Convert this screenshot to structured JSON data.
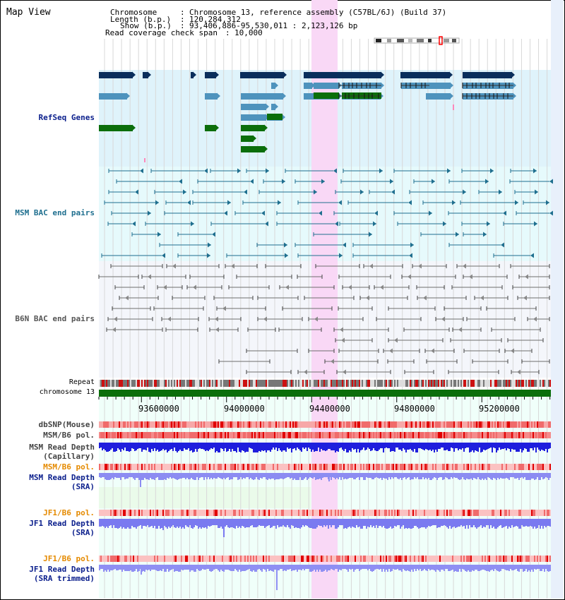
{
  "page_title": "Map View",
  "info": {
    "chromosome_key": "Chromosome",
    "chromosome_value": "Chromosome 13, reference assembly (C57BL/6J) (Build 37)",
    "length_key": "Length (b.p.)",
    "length_value": "120,284,312",
    "show_key": "Show (b.p.)",
    "show_value": "93,406,886-95,530,011 : 2,123,126 bp",
    "span_key": "Read coverage check span",
    "span_value": "10,000"
  },
  "tracks": {
    "refseq": "RefSeq Genes",
    "msm_bac": "MSM BAC end pairs",
    "b6n_bac": "B6N BAC end pairs",
    "repeat": "Repeat",
    "chromosome": "chromosome 13",
    "dbsnp": "dbSNP(Mouse)",
    "msm_pol_1": "MSM/B6 pol.",
    "msm_depth_cap_1": "MSM Read Depth",
    "msm_depth_cap_2": "(Capillary)",
    "msm_pol_2": "MSM/B6 pol.",
    "msm_depth_sra_1": "MSM Read Depth",
    "msm_depth_sra_2": "(SRA)",
    "jf1_pol_1": "JF1/B6 pol.",
    "jf1_depth_sra_1": "JF1 Read Depth",
    "jf1_depth_sra_2": "(SRA)",
    "jf1_pol_2": "JF1/B6 pol.",
    "jf1_depth_trim_1": "JF1 Read Depth",
    "jf1_depth_trim_2": "(SRA trimmed)"
  },
  "axis": {
    "ticks": [
      "93600000",
      "94000000",
      "94400000",
      "94800000",
      "95200000"
    ]
  },
  "colors": {
    "highlight": "#f9d8f6",
    "refseq_dark": "#0a2e5c",
    "refseq_mid": "#4e93bd",
    "refseq_green": "#0b6e0b",
    "msm_line": "#1f6f8f",
    "b6n_line": "#6e6e6e",
    "chromosome_bar": "#0b6e0b",
    "pol_red": "#ee3b3b",
    "depth_blue": "#1f1fdd",
    "depth_light": "#7a7af0"
  }
}
